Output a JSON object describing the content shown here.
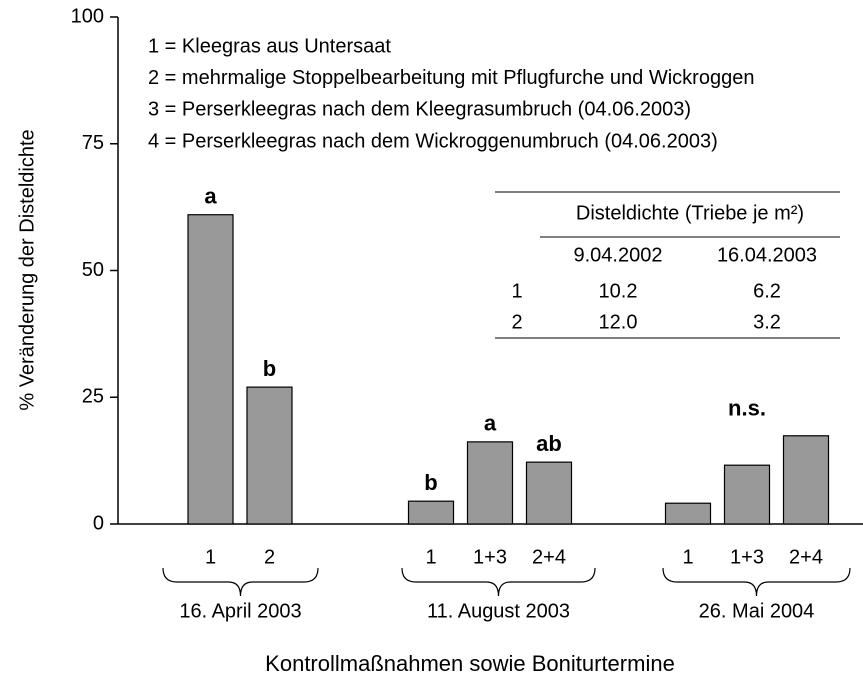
{
  "chart_data": {
    "type": "bar",
    "y_label": "% Veränderung der Disteldichte",
    "x_label": "Kontrollmaßnahmen sowie Boniturtermine",
    "ylim": [
      0,
      100
    ],
    "yticks": [
      0,
      25,
      50,
      75,
      100
    ],
    "color": "#999999",
    "groups": [
      {
        "label": "16. April 2003",
        "categories": [
          "1",
          "2"
        ],
        "values": [
          61,
          27
        ],
        "letters": [
          "a",
          "b"
        ]
      },
      {
        "label": "11. August 2003",
        "categories": [
          "1",
          "1+3",
          "2+4"
        ],
        "values": [
          4.5,
          16.2,
          12.2
        ],
        "letters": [
          "b",
          "a",
          "ab"
        ]
      },
      {
        "label": "26. Mai 2004",
        "categories": [
          "1",
          "1+3",
          "2+4"
        ],
        "values": [
          4.1,
          11.6,
          17.4
        ],
        "annotation": "n.s."
      }
    ],
    "legend": [
      "1 = Kleegras aus Untersaat",
      "2 = mehrmalige Stoppelbearbeitung mit Pflugfurche und Wickroggen",
      "3 = Perserkleegras nach dem Kleegrasumbruch (04.06.2003)",
      "4 = Perserkleegras nach dem Wickroggenumbruch (04.06.2003)"
    ],
    "table": {
      "title": "Disteldichte (Triebe je m²)",
      "columns": [
        "9.04.2002",
        "16.04.2003"
      ],
      "rows": [
        [
          "1",
          "10.2",
          "6.2"
        ],
        [
          "2",
          "12.0",
          "3.2"
        ]
      ]
    }
  }
}
